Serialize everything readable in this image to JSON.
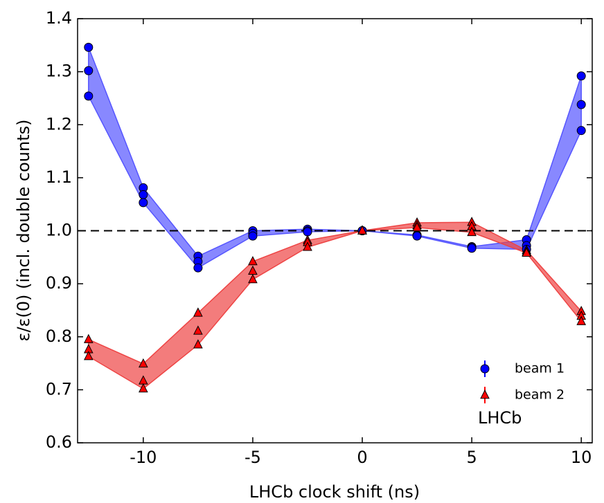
{
  "chart_data": {
    "type": "scatter",
    "xlabel": "LHCb clock shift (ns)",
    "ylabel": "ε/ε(0) (incl. double counts)",
    "annotation": "LHCb",
    "xlim": [
      -13,
      10.5
    ],
    "ylim": [
      0.6,
      1.4
    ],
    "xticks": [
      -10,
      -5,
      0,
      5,
      10
    ],
    "yticks": [
      0.6,
      0.7,
      0.8,
      0.9,
      {
        "value": 1,
        "label": "1.0"
      },
      1.1,
      1.2,
      1.3,
      1.4
    ],
    "hline": 1,
    "legend": "lower right",
    "series": [
      {
        "name": "beam 1",
        "color": "#0000ff",
        "band_color": "#5555ff",
        "marker": "circle",
        "x": [
          -12.5,
          -12.5,
          -12.5,
          -10,
          -10,
          -10,
          -7.5,
          -7.5,
          -7.5,
          -5,
          -5,
          -5,
          -2.5,
          -2.5,
          -2.5,
          0,
          0,
          0,
          2.5,
          2.5,
          2.5,
          5,
          5,
          5,
          7.5,
          7.5,
          7.5,
          10,
          10,
          10
        ],
        "values": [
          1.346,
          1.302,
          1.254,
          1.081,
          1.068,
          1.053,
          0.952,
          0.942,
          0.93,
          1.0,
          0.995,
          0.99,
          1.003,
          1.0,
          0.998,
          1.0,
          1.0,
          1.0,
          0.992,
          0.991,
          0.99,
          0.97,
          0.969,
          0.967,
          0.983,
          0.972,
          0.965,
          1.292,
          1.238,
          1.189
        ]
      },
      {
        "name": "beam 2",
        "color": "#ff0000",
        "band_color": "#ee4444",
        "marker": "triangle",
        "x": [
          -12.5,
          -12.5,
          -12.5,
          -10,
          -10,
          -10,
          -7.5,
          -7.5,
          -7.5,
          -5,
          -5,
          -5,
          -2.5,
          -2.5,
          -2.5,
          0,
          0,
          0,
          2.5,
          2.5,
          2.5,
          5,
          5,
          5,
          7.5,
          7.5,
          7.5,
          10,
          10,
          10
        ],
        "values": [
          0.795,
          0.776,
          0.763,
          0.749,
          0.717,
          0.702,
          0.845,
          0.811,
          0.785,
          0.942,
          0.924,
          0.908,
          0.982,
          0.978,
          0.969,
          1.0,
          1.0,
          1.0,
          1.015,
          1.01,
          1.006,
          1.016,
          1.008,
          0.997,
          0.963,
          0.96,
          0.958,
          0.848,
          0.839,
          0.829
        ]
      }
    ]
  }
}
